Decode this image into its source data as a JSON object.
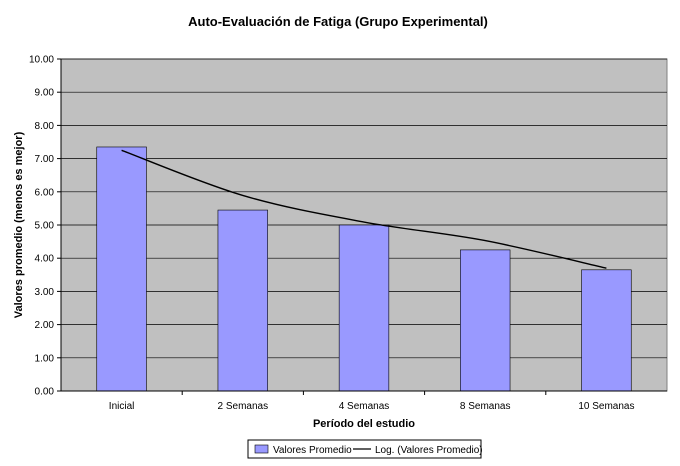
{
  "chart_data": {
    "type": "bar",
    "title": "Auto-Evaluación de Fatiga (Grupo Experimental)",
    "xlabel": "Período del estudio",
    "ylabel": "Valores promedio (menos es mejor)",
    "categories": [
      "Inicial",
      "2 Semanas",
      "4 Semanas",
      "8 Semanas",
      "10 Semanas"
    ],
    "ylim": [
      0,
      10
    ],
    "yticks": [
      "0.00",
      "1.00",
      "2.00",
      "3.00",
      "4.00",
      "5.00",
      "6.00",
      "7.00",
      "8.00",
      "9.00",
      "10.00"
    ],
    "grid": true,
    "legend_position": "bottom",
    "series": [
      {
        "name": "Valores Promedio",
        "type": "bar",
        "values": [
          7.35,
          5.45,
          5.0,
          4.25,
          3.65
        ],
        "color": "#9999ff"
      },
      {
        "name": "Log. (Valores Promedio)",
        "type": "line",
        "trendline": "logarithmic",
        "values": [
          7.25,
          5.89,
          5.09,
          4.53,
          3.7
        ],
        "color": "#000000"
      }
    ],
    "plot_background": "#c0c0c0"
  }
}
